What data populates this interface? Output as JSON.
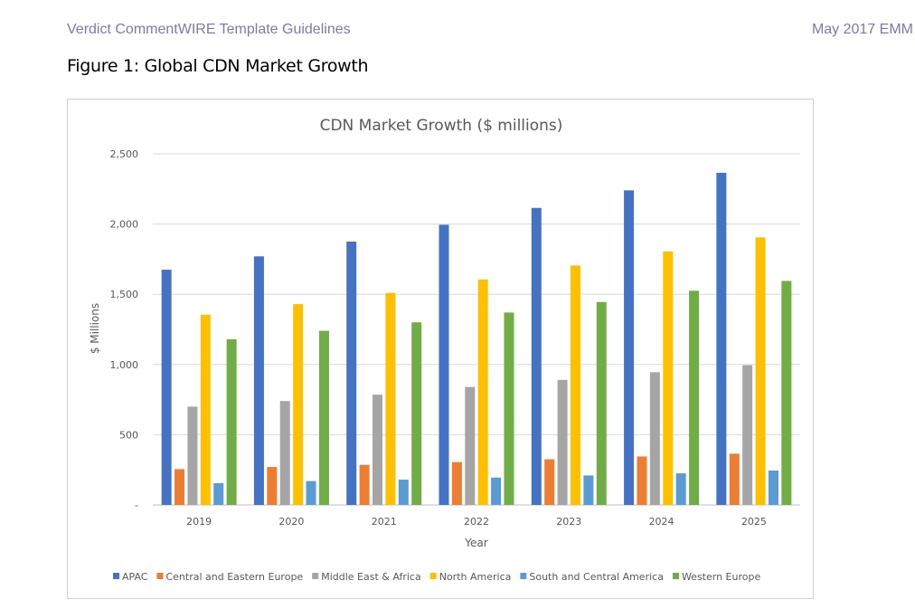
{
  "page": {
    "header_left": "Verdict CommentWIRE Template Guidelines",
    "header_right": "May 2017 EMM",
    "figure_title": "Figure 1: Global CDN Market Growth"
  },
  "chart_data": {
    "type": "bar",
    "title": "CDN Market Growth ($ millions)",
    "xlabel": "Year",
    "ylabel": "$ Millions",
    "ylim": [
      0,
      2500
    ],
    "yticks": [
      0,
      500,
      1000,
      1500,
      2000,
      2500
    ],
    "ytick_labels": [
      "-",
      "500",
      "1,000",
      "1,500",
      "2,000",
      "2,500"
    ],
    "grid": true,
    "legend_position": "bottom",
    "categories": [
      "2019",
      "2020",
      "2021",
      "2022",
      "2023",
      "2024",
      "2025"
    ],
    "series": [
      {
        "name": "APAC",
        "color": "#4472c4",
        "values": [
          1675,
          1770,
          1875,
          1995,
          2115,
          2240,
          2365
        ]
      },
      {
        "name": "Central and Eastern Europe",
        "color": "#ed7d31",
        "values": [
          255,
          270,
          285,
          305,
          325,
          345,
          365
        ]
      },
      {
        "name": "Middle East & Africa",
        "color": "#a5a5a5",
        "values": [
          700,
          740,
          785,
          840,
          890,
          945,
          995
        ]
      },
      {
        "name": "North America",
        "color": "#ffc000",
        "values": [
          1355,
          1430,
          1510,
          1605,
          1705,
          1805,
          1905
        ]
      },
      {
        "name": "South and Central America",
        "color": "#5b9bd5",
        "values": [
          155,
          170,
          180,
          195,
          210,
          225,
          245
        ]
      },
      {
        "name": "Western Europe",
        "color": "#70ad47",
        "values": [
          1180,
          1240,
          1300,
          1370,
          1445,
          1525,
          1595
        ]
      }
    ]
  }
}
